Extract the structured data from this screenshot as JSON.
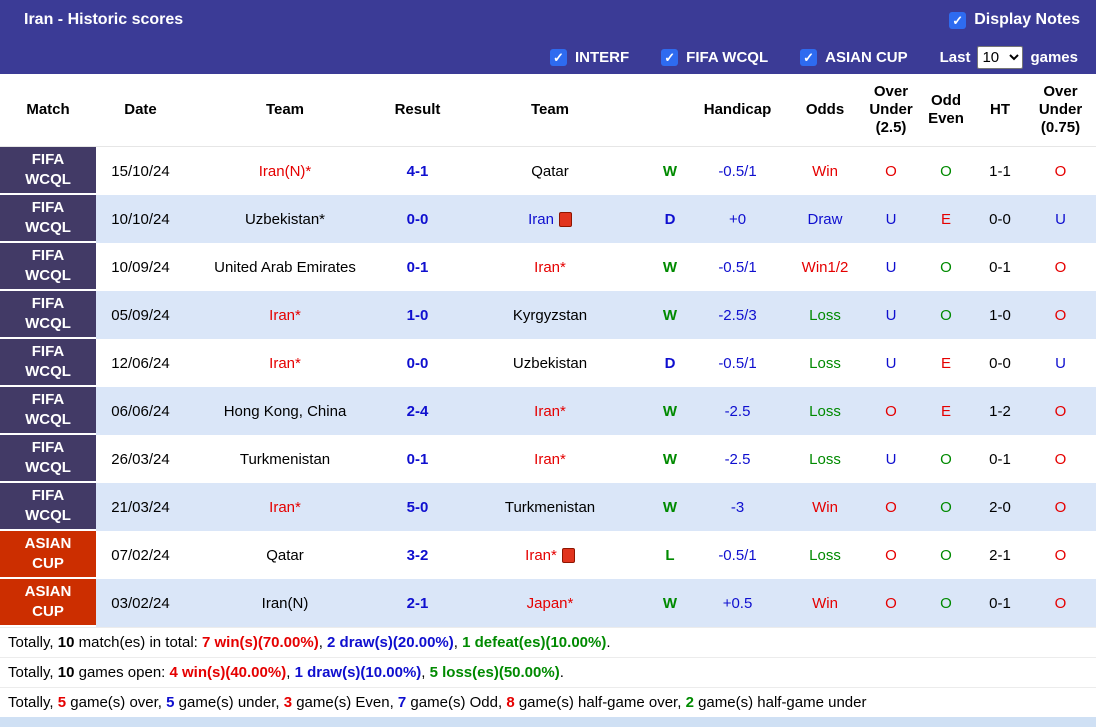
{
  "colors": {
    "header_bg": "#3b3b96",
    "fifa_badge_bg": "#423a66",
    "asian_badge_bg": "#cc2e00",
    "row_alt_bg": "#dae6f8",
    "checkbox_blue": "#2e6bf0",
    "red": "#e50000",
    "blue": "#0f0fcf",
    "green": "#008a00"
  },
  "icons": {
    "checkmark": "✓"
  },
  "title_bar": {
    "title": "Iran - Historic scores",
    "display_notes": {
      "label": "Display Notes",
      "checked": true
    }
  },
  "filter_bar": {
    "filters": [
      {
        "label": "INTERF",
        "checked": true
      },
      {
        "label": "FIFA WCQL",
        "checked": true
      },
      {
        "label": "ASIAN CUP",
        "checked": true
      }
    ],
    "last_label": "Last",
    "games_count": "10",
    "games_label": "games"
  },
  "table": {
    "headers": [
      "Match",
      "Date",
      "Team",
      "Result",
      "Team",
      "",
      "Handicap",
      "Odds",
      "Over Under (2.5)",
      "Odd Even",
      "HT",
      "Over Under (0.75)"
    ],
    "rows": [
      {
        "comp": "FIFA WCQL",
        "comp_type": "fifa",
        "date": "15/10/24",
        "home": "Iran(N)*",
        "home_color": "red",
        "home_card": false,
        "result": "4-1",
        "away": "Qatar",
        "away_color": "black",
        "away_card": false,
        "wdl": "W",
        "wdl_color": "green",
        "handicap": "-0.5/1",
        "odds": "Win",
        "odds_color": "red",
        "ou25": "O",
        "ou25_color": "red",
        "odd_even": "O",
        "odd_even_color": "green",
        "ht": "1-1",
        "ou075": "O",
        "ou075_color": "red"
      },
      {
        "comp": "FIFA WCQL",
        "comp_type": "fifa",
        "date": "10/10/24",
        "home": "Uzbekistan*",
        "home_color": "black",
        "home_card": false,
        "result": "0-0",
        "away": "Iran",
        "away_color": "blue",
        "away_card": true,
        "wdl": "D",
        "wdl_color": "blue",
        "handicap": "+0",
        "odds": "Draw",
        "odds_color": "blue",
        "ou25": "U",
        "ou25_color": "blue",
        "odd_even": "E",
        "odd_even_color": "red",
        "ht": "0-0",
        "ou075": "U",
        "ou075_color": "blue"
      },
      {
        "comp": "FIFA WCQL",
        "comp_type": "fifa",
        "date": "10/09/24",
        "home": "United Arab Emirates",
        "home_color": "black",
        "home_card": false,
        "result": "0-1",
        "away": "Iran*",
        "away_color": "red",
        "away_card": false,
        "wdl": "W",
        "wdl_color": "green",
        "handicap": "-0.5/1",
        "odds": "Win1/2",
        "odds_color": "red",
        "ou25": "U",
        "ou25_color": "blue",
        "odd_even": "O",
        "odd_even_color": "green",
        "ht": "0-1",
        "ou075": "O",
        "ou075_color": "red"
      },
      {
        "comp": "FIFA WCQL",
        "comp_type": "fifa",
        "date": "05/09/24",
        "home": "Iran*",
        "home_color": "red",
        "home_card": false,
        "result": "1-0",
        "away": "Kyrgyzstan",
        "away_color": "black",
        "away_card": false,
        "wdl": "W",
        "wdl_color": "green",
        "handicap": "-2.5/3",
        "odds": "Loss",
        "odds_color": "green",
        "ou25": "U",
        "ou25_color": "blue",
        "odd_even": "O",
        "odd_even_color": "green",
        "ht": "1-0",
        "ou075": "O",
        "ou075_color": "red"
      },
      {
        "comp": "FIFA WCQL",
        "comp_type": "fifa",
        "date": "12/06/24",
        "home": "Iran*",
        "home_color": "red",
        "home_card": false,
        "result": "0-0",
        "away": "Uzbekistan",
        "away_color": "black",
        "away_card": false,
        "wdl": "D",
        "wdl_color": "blue",
        "handicap": "-0.5/1",
        "odds": "Loss",
        "odds_color": "green",
        "ou25": "U",
        "ou25_color": "blue",
        "odd_even": "E",
        "odd_even_color": "red",
        "ht": "0-0",
        "ou075": "U",
        "ou075_color": "blue"
      },
      {
        "comp": "FIFA WCQL",
        "comp_type": "fifa",
        "date": "06/06/24",
        "home": "Hong Kong, China",
        "home_color": "black",
        "home_card": false,
        "result": "2-4",
        "away": "Iran*",
        "away_color": "red",
        "away_card": false,
        "wdl": "W",
        "wdl_color": "green",
        "handicap": "-2.5",
        "odds": "Loss",
        "odds_color": "green",
        "ou25": "O",
        "ou25_color": "red",
        "odd_even": "E",
        "odd_even_color": "red",
        "ht": "1-2",
        "ou075": "O",
        "ou075_color": "red"
      },
      {
        "comp": "FIFA WCQL",
        "comp_type": "fifa",
        "date": "26/03/24",
        "home": "Turkmenistan",
        "home_color": "black",
        "home_card": false,
        "result": "0-1",
        "away": "Iran*",
        "away_color": "red",
        "away_card": false,
        "wdl": "W",
        "wdl_color": "green",
        "handicap": "-2.5",
        "odds": "Loss",
        "odds_color": "green",
        "ou25": "U",
        "ou25_color": "blue",
        "odd_even": "O",
        "odd_even_color": "green",
        "ht": "0-1",
        "ou075": "O",
        "ou075_color": "red"
      },
      {
        "comp": "FIFA WCQL",
        "comp_type": "fifa",
        "date": "21/03/24",
        "home": "Iran*",
        "home_color": "red",
        "home_card": false,
        "result": "5-0",
        "away": "Turkmenistan",
        "away_color": "black",
        "away_card": false,
        "wdl": "W",
        "wdl_color": "green",
        "handicap": "-3",
        "odds": "Win",
        "odds_color": "red",
        "ou25": "O",
        "ou25_color": "red",
        "odd_even": "O",
        "odd_even_color": "green",
        "ht": "2-0",
        "ou075": "O",
        "ou075_color": "red"
      },
      {
        "comp": "ASIAN CUP",
        "comp_type": "asian",
        "date": "07/02/24",
        "home": "Qatar",
        "home_color": "black",
        "home_card": false,
        "result": "3-2",
        "away": "Iran*",
        "away_color": "red",
        "away_card": true,
        "wdl": "L",
        "wdl_color": "green",
        "handicap": "-0.5/1",
        "odds": "Loss",
        "odds_color": "green",
        "ou25": "O",
        "ou25_color": "red",
        "odd_even": "O",
        "odd_even_color": "green",
        "ht": "2-1",
        "ou075": "O",
        "ou075_color": "red"
      },
      {
        "comp": "ASIAN CUP",
        "comp_type": "asian",
        "date": "03/02/24",
        "home": "Iran(N)",
        "home_color": "black",
        "home_card": false,
        "result": "2-1",
        "away": "Japan*",
        "away_color": "red",
        "away_card": false,
        "wdl": "W",
        "wdl_color": "green",
        "handicap": "+0.5",
        "odds": "Win",
        "odds_color": "red",
        "ou25": "O",
        "ou25_color": "red",
        "odd_even": "O",
        "odd_even_color": "green",
        "ht": "0-1",
        "ou075": "O",
        "ou075_color": "red"
      }
    ]
  },
  "footer": {
    "lines": [
      {
        "segments": [
          {
            "text": "Totally, "
          },
          {
            "text": "10",
            "bold": true
          },
          {
            "text": " match(es) in total: "
          },
          {
            "text": "7 win(s)(70.00%)",
            "color": "red",
            "bold": true
          },
          {
            "text": ", "
          },
          {
            "text": "2 draw(s)(20.00%)",
            "color": "blue",
            "bold": true
          },
          {
            "text": ", "
          },
          {
            "text": "1 defeat(es)(10.00%)",
            "color": "green",
            "bold": true
          },
          {
            "text": "."
          }
        ]
      },
      {
        "segments": [
          {
            "text": "Totally, "
          },
          {
            "text": "10",
            "bold": true
          },
          {
            "text": " games open: "
          },
          {
            "text": "4 win(s)(40.00%)",
            "color": "red",
            "bold": true
          },
          {
            "text": ", "
          },
          {
            "text": "1 draw(s)(10.00%)",
            "color": "blue",
            "bold": true
          },
          {
            "text": ", "
          },
          {
            "text": "5 loss(es)(50.00%)",
            "color": "green",
            "bold": true
          },
          {
            "text": "."
          }
        ]
      },
      {
        "segments": [
          {
            "text": "Totally, "
          },
          {
            "text": "5",
            "color": "red",
            "bold": true
          },
          {
            "text": " game(s) over, "
          },
          {
            "text": "5",
            "color": "blue",
            "bold": true
          },
          {
            "text": " game(s) under, "
          },
          {
            "text": "3",
            "color": "red",
            "bold": true
          },
          {
            "text": " game(s) Even, "
          },
          {
            "text": "7",
            "color": "blue",
            "bold": true
          },
          {
            "text": " game(s) Odd, "
          },
          {
            "text": "8",
            "color": "red",
            "bold": true
          },
          {
            "text": " game(s) half-game over, "
          },
          {
            "text": "2",
            "color": "green",
            "bold": true
          },
          {
            "text": " game(s) half-game under"
          }
        ]
      }
    ]
  }
}
